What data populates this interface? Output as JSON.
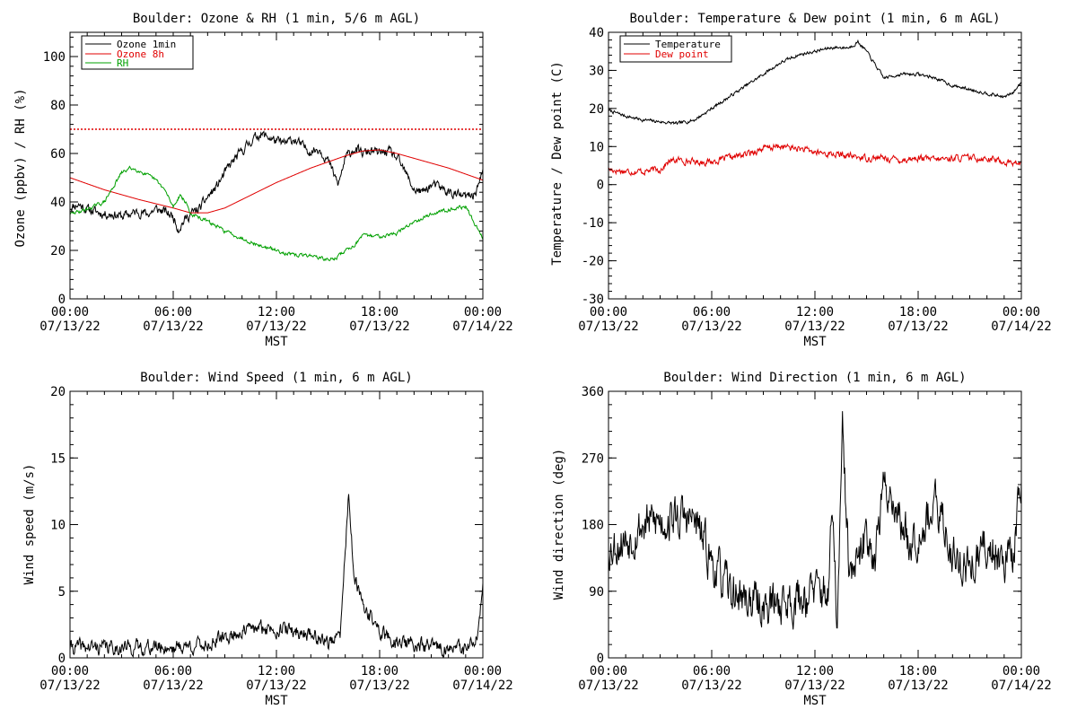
{
  "charts": [
    {
      "id": "ozone",
      "chart_data": {
        "type": "line",
        "title": "Boulder: Ozone & RH (1 min, 5/6 m AGL)",
        "xlabel": "MST",
        "ylabel": "Ozone (ppbv) / RH (%)",
        "xlim": [
          0,
          24
        ],
        "ylim": [
          0,
          110
        ],
        "yticks": [
          0,
          20,
          40,
          60,
          80,
          100
        ],
        "xticks": [
          {
            "hour": 0,
            "time": "00:00",
            "date": "07/13/22"
          },
          {
            "hour": 6,
            "time": "06:00",
            "date": "07/13/22"
          },
          {
            "hour": 12,
            "time": "12:00",
            "date": "07/13/22"
          },
          {
            "hour": 18,
            "time": "18:00",
            "date": "07/13/22"
          },
          {
            "hour": 24,
            "time": "00:00",
            "date": "07/14/22"
          }
        ],
        "reference_line": {
          "y": 70,
          "color": "#e00000",
          "style": "dotted"
        },
        "legend_position": "top-left",
        "series": [
          {
            "name": "Ozone 1min",
            "color": "#000000",
            "noise": 1.6,
            "seed": 11,
            "x": [
              0,
              0.5,
              1,
              1.5,
              2,
              2.5,
              3,
              3.5,
              4,
              4.5,
              5,
              5.5,
              6,
              6.3,
              6.6,
              7,
              7.5,
              8,
              8.5,
              9,
              9.5,
              10,
              10.5,
              11,
              11.5,
              12,
              12.5,
              13,
              13.5,
              14,
              14.5,
              15,
              15.3,
              15.6,
              16,
              16.5,
              17,
              17.5,
              18,
              18.5,
              19,
              19.5,
              20,
              20.5,
              21,
              21.5,
              22,
              22.5,
              23,
              23.5,
              24
            ],
            "y": [
              38,
              39,
              37,
              36,
              35,
              35,
              34,
              35,
              36,
              35,
              37,
              36,
              34,
              29,
              32,
              35,
              37,
              42,
              46,
              52,
              57,
              61,
              65,
              68,
              67,
              65,
              64,
              66,
              63,
              61,
              62,
              57,
              52,
              47,
              58,
              62,
              60,
              61,
              60,
              61,
              58,
              52,
              45,
              44,
              47,
              46,
              44,
              43,
              42,
              43,
              52
            ]
          },
          {
            "name": "Ozone 8h",
            "color": "#e00000",
            "noise": 0,
            "seed": 1,
            "x": [
              0,
              2,
              4,
              6,
              7,
              8,
              9,
              10,
              12,
              14,
              16,
              17,
              18,
              19,
              20,
              22,
              24
            ],
            "y": [
              50,
              45,
              41,
              37.5,
              35.5,
              35.5,
              37.5,
              41,
              48,
              54,
              59,
              61,
              61.5,
              60,
              58,
              54,
              49
            ]
          },
          {
            "name": "RH",
            "color": "#00a000",
            "noise": 0.6,
            "seed": 29,
            "x": [
              0,
              1,
              2,
              2.5,
              3,
              3.5,
              4,
              4.5,
              5,
              5.5,
              6,
              6.4,
              6.8,
              7,
              8,
              9,
              10,
              11,
              12,
              13,
              14,
              15,
              15.5,
              16,
              16.5,
              17,
              18,
              19,
              20,
              21,
              22,
              23,
              24
            ],
            "y": [
              35,
              37,
              40,
              46,
              52,
              54,
              53,
              51,
              49,
              45,
              38,
              43,
              39,
              35,
              32,
              28,
              25,
              22,
              20,
              18,
              18,
              16,
              17,
              20,
              22,
              26,
              26,
              27,
              32,
              35,
              37,
              38,
              25
            ]
          }
        ]
      }
    },
    {
      "id": "temp",
      "chart_data": {
        "type": "line",
        "title": "Boulder: Temperature & Dew point (1 min, 6 m AGL)",
        "xlabel": "MST",
        "ylabel": "Temperature / Dew point (C)",
        "xlim": [
          0,
          24
        ],
        "ylim": [
          -30,
          40
        ],
        "yticks": [
          -30,
          -20,
          -10,
          0,
          10,
          20,
          30,
          40
        ],
        "xticks": [
          {
            "hour": 0,
            "time": "00:00",
            "date": "07/13/22"
          },
          {
            "hour": 6,
            "time": "06:00",
            "date": "07/13/22"
          },
          {
            "hour": 12,
            "time": "12:00",
            "date": "07/13/22"
          },
          {
            "hour": 18,
            "time": "18:00",
            "date": "07/13/22"
          },
          {
            "hour": 24,
            "time": "00:00",
            "date": "07/14/22"
          }
        ],
        "legend_position": "top-left",
        "series": [
          {
            "name": "Temperature",
            "color": "#000000",
            "noise": 0.35,
            "seed": 7,
            "x": [
              0,
              1,
              2,
              3,
              4,
              5,
              6,
              7,
              8,
              9,
              10,
              11,
              12,
              13,
              14,
              14.5,
              15,
              16,
              17,
              18,
              19,
              20,
              21,
              22,
              23,
              23.5,
              24
            ],
            "y": [
              19.5,
              18,
              17,
              16.5,
              16,
              17,
              20,
              23,
              26,
              29,
              32,
              34,
              35,
              36,
              36,
              37.5,
              35,
              28,
              29,
              29,
              28,
              26,
              25,
              24,
              23,
              24,
              27
            ]
          },
          {
            "name": "Dew point",
            "color": "#e00000",
            "noise": 0.7,
            "seed": 17,
            "x": [
              0,
              1,
              2,
              3,
              3.5,
              4,
              5,
              6,
              7,
              8,
              9,
              10,
              11,
              12,
              13,
              14,
              15,
              16,
              17,
              18,
              19,
              20,
              21,
              22,
              23,
              24
            ],
            "y": [
              4,
              3.5,
              3.5,
              4,
              6,
              6.5,
              6,
              6,
              7,
              8,
              9.5,
              10,
              9.5,
              8.5,
              8,
              7.5,
              7,
              7,
              6.5,
              7,
              6.5,
              7,
              7,
              7,
              6,
              5.5
            ]
          }
        ]
      }
    },
    {
      "id": "speed",
      "chart_data": {
        "type": "line",
        "title": "Boulder: Wind Speed (1 min, 6 m AGL)",
        "xlabel": "MST",
        "ylabel": "Wind speed (m/s)",
        "xlim": [
          0,
          24
        ],
        "ylim": [
          0,
          20
        ],
        "yticks": [
          0,
          5,
          10,
          15,
          20
        ],
        "xticks": [
          {
            "hour": 0,
            "time": "00:00",
            "date": "07/13/22"
          },
          {
            "hour": 6,
            "time": "06:00",
            "date": "07/13/22"
          },
          {
            "hour": 12,
            "time": "12:00",
            "date": "07/13/22"
          },
          {
            "hour": 18,
            "time": "18:00",
            "date": "07/13/22"
          },
          {
            "hour": 24,
            "time": "00:00",
            "date": "07/14/22"
          }
        ],
        "series": [
          {
            "name": "",
            "color": "#000000",
            "noise": 0.45,
            "seed": 41,
            "clampMin": 0,
            "x": [
              0,
              2,
              4,
              6,
              7,
              8,
              9,
              10,
              11,
              12,
              13,
              14,
              15,
              15.7,
              16,
              16.2,
              16.5,
              17,
              17.5,
              18,
              18.5,
              19,
              20,
              21,
              22,
              23,
              23.7,
              24
            ],
            "y": [
              0.8,
              0.8,
              0.8,
              0.8,
              0.9,
              1,
              1.5,
              2,
              2.2,
              2.2,
              2,
              1.8,
              1.2,
              1.5,
              8,
              12.5,
              6,
              4,
              3,
              2,
              1.5,
              1.2,
              1,
              0.8,
              0.7,
              0.6,
              1.5,
              5
            ]
          }
        ]
      }
    },
    {
      "id": "dir",
      "chart_data": {
        "type": "line",
        "title": "Boulder: Wind Direction (1 min, 6 m AGL)",
        "xlabel": "MST",
        "ylabel": "Wind direction (deg)",
        "xlim": [
          0,
          24
        ],
        "ylim": [
          0,
          360
        ],
        "yticks": [
          0,
          90,
          180,
          270,
          360
        ],
        "xticks": [
          {
            "hour": 0,
            "time": "00:00",
            "date": "07/13/22"
          },
          {
            "hour": 6,
            "time": "06:00",
            "date": "07/13/22"
          },
          {
            "hour": 12,
            "time": "12:00",
            "date": "07/13/22"
          },
          {
            "hour": 18,
            "time": "18:00",
            "date": "07/13/22"
          },
          {
            "hour": 24,
            "time": "00:00",
            "date": "07/14/22"
          }
        ],
        "series": [
          {
            "name": "",
            "color": "#000000",
            "noise": 24,
            "seed": 53,
            "clampMin": 0,
            "clampMax": 360,
            "x": [
              0,
              1,
              2,
              3,
              4,
              5,
              6,
              7,
              8,
              9,
              10,
              11,
              12,
              12.8,
              13,
              13.3,
              13.6,
              14,
              14.5,
              15,
              15.5,
              16,
              16.5,
              17,
              17.5,
              18,
              18.5,
              19,
              19.5,
              20,
              20.5,
              21,
              22,
              23,
              23.5,
              24
            ],
            "y": [
              150,
              160,
              180,
              185,
              190,
              185,
              130,
              90,
              80,
              70,
              75,
              80,
              90,
              90,
              200,
              40,
              300,
              110,
              120,
              170,
              140,
              230,
              220,
              180,
              160,
              170,
              190,
              200,
              180,
              140,
              130,
              120,
              150,
              140,
              130,
              250
            ]
          }
        ]
      }
    }
  ]
}
